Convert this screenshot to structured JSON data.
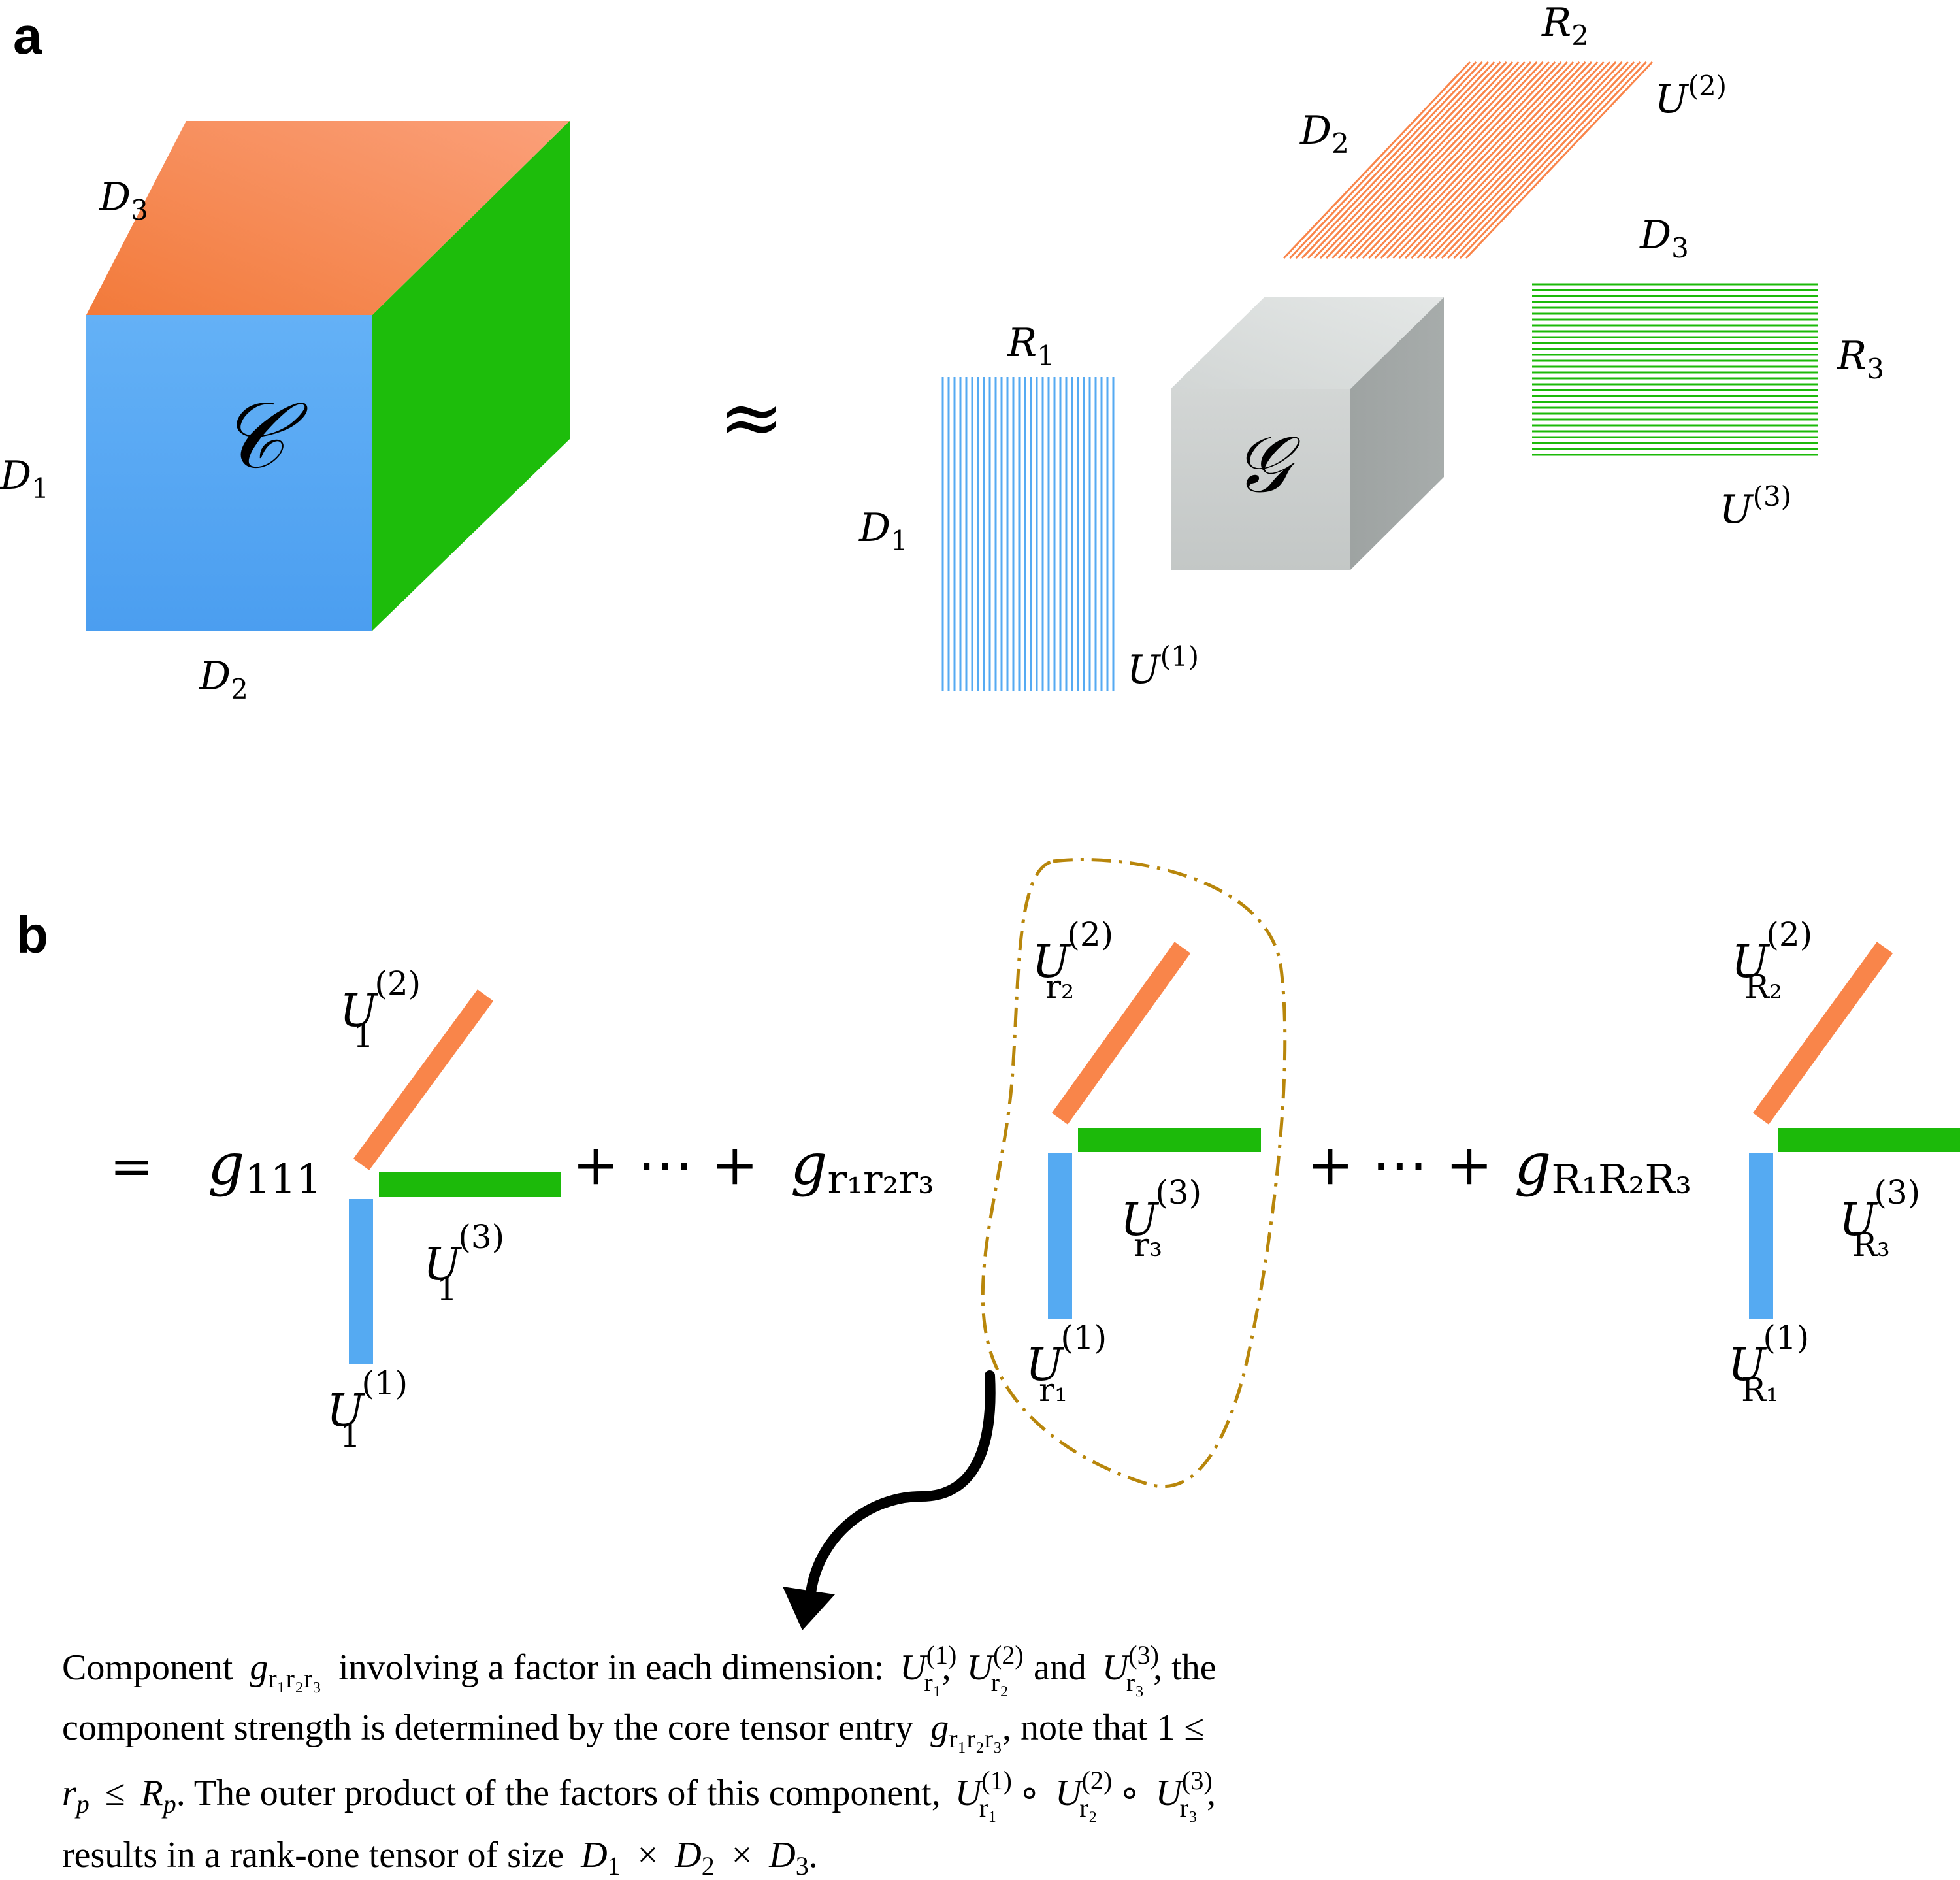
{
  "panel_a": {
    "label": "a",
    "tensor": {
      "symbol": "𝒞",
      "dims": {
        "d1": "D",
        "d1_sub": "1",
        "d2": "D",
        "d2_sub": "2",
        "d3": "D",
        "d3_sub": "3"
      }
    },
    "approx_symbol": "≈",
    "core": {
      "symbol": "𝒢"
    },
    "factor1": {
      "rows_label": "D",
      "rows_sub": "1",
      "cols_label": "R",
      "cols_sub": "1",
      "name": "U",
      "name_sup": "(1)"
    },
    "factor2": {
      "rows_label": "D",
      "rows_sub": "2",
      "cols_label": "R",
      "cols_sub": "2",
      "name": "U",
      "name_sup": "(2)"
    },
    "factor3": {
      "rows_label": "D",
      "rows_sub": "3",
      "cols_label": "R",
      "cols_sub": "3",
      "name": "U",
      "name_sup": "(3)"
    }
  },
  "panel_b": {
    "label": "b",
    "equals": "=",
    "plus_dots_1": "+ ⋯ +",
    "plus_dots_2": "+ ⋯ +",
    "terms": [
      {
        "coef": "g",
        "coef_sub": "111",
        "u1_sub": "1",
        "u2_sub": "1",
        "u3_sub": "1"
      },
      {
        "coef": "g",
        "coef_sub": "r₁r₂r₃",
        "u1_sub": "r₁",
        "u2_sub": "r₂",
        "u3_sub": "r₃"
      },
      {
        "coef": "g",
        "coef_sub": "R₁R₂R₃",
        "u1_sub": "R₁",
        "u2_sub": "R₂",
        "u3_sub": "R₃"
      }
    ],
    "factor_name": "U",
    "sup1": "(1)",
    "sup2": "(2)",
    "sup3": "(3)",
    "caption": {
      "l1_a": "Component",
      "l1_b": "involving a factor in each dimension:",
      "l1_c": ",",
      "l1_d": "and",
      "l1_e": ", the",
      "l2_a": "component strength is determined by the core tensor entry",
      "l2_b": ", note that 1 ≤",
      "l3_a": "≤",
      "l3_b": ". The outer product of the factors of this component,",
      "l3_c": "∘",
      "l3_d": "∘",
      "l3_e": ",",
      "l4_a": "results in a rank-one tensor of size",
      "l4_b": "×",
      "l4_c": "×",
      "l4_d": "."
    }
  },
  "colors": {
    "blue": "#55aaf2",
    "orange": "#f9854a",
    "green": "#1cba0a",
    "gray": "#c8cdcc",
    "dashed_outline": "#b8860b"
  }
}
